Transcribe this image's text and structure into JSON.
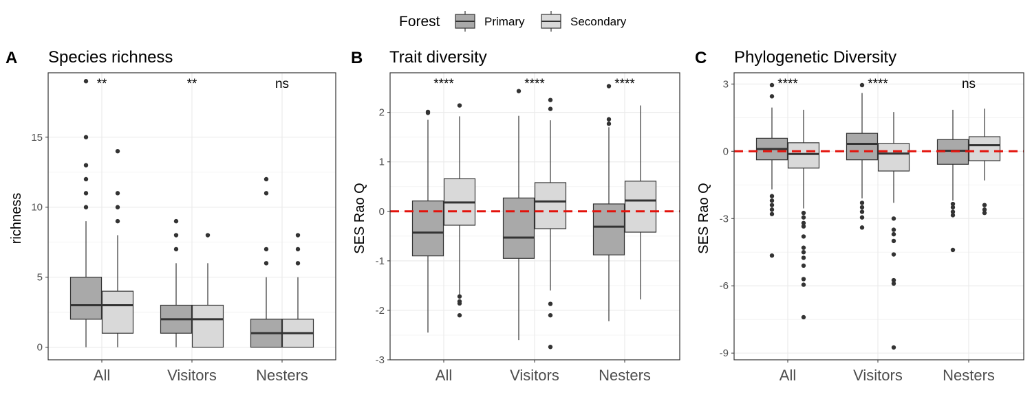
{
  "legend": {
    "title": "Forest",
    "items": [
      {
        "label": "Primary",
        "color": "#a9a9a9"
      },
      {
        "label": "Secondary",
        "color": "#d9d9d9"
      }
    ]
  },
  "chart_data": [
    {
      "type": "boxplot",
      "tag": "A",
      "title": "Species richness",
      "xlabel": "",
      "ylabel": "richness",
      "ylim": [
        -0.9,
        19.6
      ],
      "yticks": [
        0,
        5,
        10,
        15
      ],
      "ytick_labels": [
        "0",
        "5",
        "10",
        "15"
      ],
      "categories": [
        "All",
        "Visitors",
        "Nesters"
      ],
      "ref_line": null,
      "significance": [
        "**",
        "**",
        "ns"
      ],
      "series": [
        {
          "name": "Primary",
          "boxes": [
            {
              "min": 0,
              "q1": 2,
              "median": 3,
              "q3": 5,
              "max": 9,
              "outliers": [
                10,
                11,
                12,
                13,
                15,
                19
              ]
            },
            {
              "min": 0,
              "q1": 1,
              "median": 2,
              "q3": 3,
              "max": 6,
              "outliers": [
                7,
                8,
                9
              ]
            },
            {
              "min": 0,
              "q1": 0,
              "median": 1,
              "q3": 2,
              "max": 5,
              "outliers": [
                6,
                7,
                11,
                12
              ]
            }
          ]
        },
        {
          "name": "Secondary",
          "boxes": [
            {
              "min": 0,
              "q1": 1,
              "median": 3,
              "q3": 4,
              "max": 8,
              "outliers": [
                9,
                10,
                11,
                14
              ]
            },
            {
              "min": 0,
              "q1": 0,
              "median": 2,
              "q3": 3,
              "max": 6,
              "outliers": [
                8
              ]
            },
            {
              "min": 0,
              "q1": 0,
              "median": 1,
              "q3": 2,
              "max": 5,
              "outliers": [
                6,
                7,
                8
              ]
            }
          ]
        }
      ]
    },
    {
      "type": "boxplot",
      "tag": "B",
      "title": "Trait diversity",
      "xlabel": "",
      "ylabel": "SES Rao Q",
      "ylim": [
        -3.0,
        2.8
      ],
      "yticks": [
        -3,
        -2,
        -1,
        0,
        1,
        2
      ],
      "ytick_labels": [
        "-3",
        "-2",
        "-1",
        "0",
        "1",
        "2"
      ],
      "categories": [
        "All",
        "Visitors",
        "Nesters"
      ],
      "ref_line": 0,
      "significance": [
        "****",
        "****",
        "****"
      ],
      "series": [
        {
          "name": "Primary",
          "boxes": [
            {
              "min": -2.45,
              "q1": -0.9,
              "median": -0.43,
              "q3": 0.21,
              "max": 1.85,
              "outliers": [
                1.99,
                2.01
              ]
            },
            {
              "min": -2.6,
              "q1": -0.95,
              "median": -0.53,
              "q3": 0.27,
              "max": 1.93,
              "outliers": [
                2.43
              ]
            },
            {
              "min": -2.22,
              "q1": -0.88,
              "median": -0.31,
              "q3": 0.15,
              "max": 1.7,
              "outliers": [
                1.77,
                1.86,
                2.53
              ]
            }
          ]
        },
        {
          "name": "Secondary",
          "boxes": [
            {
              "min": -1.7,
              "q1": -0.28,
              "median": 0.18,
              "q3": 0.66,
              "max": 1.92,
              "outliers": [
                -1.72,
                -1.82,
                -1.86,
                -2.1,
                2.14
              ]
            },
            {
              "min": -1.6,
              "q1": -0.35,
              "median": 0.2,
              "q3": 0.58,
              "max": 1.84,
              "outliers": [
                -1.87,
                -2.1,
                -2.74,
                2.07,
                2.25
              ]
            },
            {
              "min": -1.78,
              "q1": -0.42,
              "median": 0.22,
              "q3": 0.61,
              "max": 2.14,
              "outliers": []
            }
          ]
        }
      ]
    },
    {
      "type": "boxplot",
      "tag": "C",
      "title": "Phylogenetic Diversity",
      "xlabel": "",
      "ylabel": "SES Rao Q",
      "ylim": [
        -9.3,
        3.5
      ],
      "yticks": [
        -9,
        -6,
        -3,
        0,
        3
      ],
      "ytick_labels": [
        "-9",
        "-6",
        "-3",
        "0",
        "3"
      ],
      "categories": [
        "All",
        "Visitors",
        "Nesters"
      ],
      "ref_line": 0,
      "significance": [
        "****",
        "****",
        "ns"
      ],
      "series": [
        {
          "name": "Primary",
          "boxes": [
            {
              "min": -1.7,
              "q1": -0.38,
              "median": 0.1,
              "q3": 0.58,
              "max": 1.95,
              "outliers": [
                2.45,
                2.95,
                -2.0,
                -2.2,
                -2.4,
                -2.6,
                -2.8,
                -4.65
              ]
            },
            {
              "min": -2.1,
              "q1": -0.38,
              "median": 0.33,
              "q3": 0.8,
              "max": 2.6,
              "outliers": [
                2.95,
                -2.3,
                -2.5,
                -2.7,
                -2.95,
                -3.4
              ]
            },
            {
              "min": -2.2,
              "q1": -0.58,
              "median": 0.02,
              "q3": 0.52,
              "max": 1.85,
              "outliers": [
                -2.35,
                -2.5,
                -2.7,
                -2.85,
                -4.4
              ]
            }
          ]
        },
        {
          "name": "Secondary",
          "boxes": [
            {
              "min": -2.55,
              "q1": -0.75,
              "median": -0.12,
              "q3": 0.38,
              "max": 1.85,
              "outliers": [
                -2.75,
                -2.95,
                -3.2,
                -3.35,
                -3.8,
                -4.3,
                -4.5,
                -4.75,
                -5.1,
                -5.7,
                -5.95,
                -7.4
              ]
            },
            {
              "min": -2.3,
              "q1": -0.88,
              "median": -0.1,
              "q3": 0.35,
              "max": 1.75,
              "outliers": [
                -3.0,
                -3.5,
                -3.7,
                -4.0,
                -4.6,
                -5.75,
                -5.9,
                -8.75
              ]
            },
            {
              "min": -1.3,
              "q1": -0.42,
              "median": 0.27,
              "q3": 0.65,
              "max": 1.9,
              "outliers": [
                -2.4,
                -2.6,
                -2.75
              ]
            }
          ]
        }
      ]
    }
  ]
}
